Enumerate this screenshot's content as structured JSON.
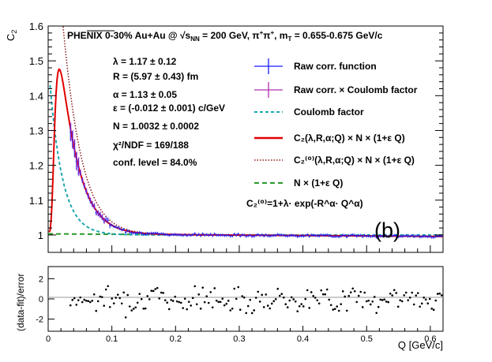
{
  "chart_data": {
    "type": "scatter",
    "title": {
      "prefix": "PHENIX 0-30% Au+Au @ ",
      "sqrt_s": "√s",
      "sqrt_s_sub": "NN",
      "energy": " = 200 GeV, π",
      "sup1": "+",
      "pion_sep": "π",
      "sup2": "+",
      "mt": ",  m",
      "mt_sub": "T",
      "mt_range": " = 0.655-0.675 GeV/c"
    },
    "ylabel": "C",
    "ylabel_sub": "2",
    "xlabel": "Q [GeV/c]",
    "ylabel_residual": "(data-fit)/error",
    "ylim": [
      0.95,
      1.6
    ],
    "xlim": [
      0,
      0.62
    ],
    "residual_ylim": [
      -3.2,
      3.2
    ],
    "y_ticks": [
      "1",
      "1.1",
      "1.2",
      "1.3",
      "1.4",
      "1.5",
      "1.6"
    ],
    "y_tick_values": [
      1,
      1.1,
      1.2,
      1.3,
      1.4,
      1.5,
      1.6
    ],
    "residual_ticks": [
      "2",
      "0",
      "-2"
    ],
    "residual_tick_values": [
      2,
      0,
      -2
    ],
    "x_ticks": [
      "0",
      "0.1",
      "0.2",
      "0.3",
      "0.4",
      "0.5",
      "0.6"
    ],
    "x_tick_values": [
      0,
      0.1,
      0.2,
      0.3,
      0.4,
      0.5,
      0.6
    ],
    "panel_label": "(b)",
    "fit_params": [
      "λ = 1.17 ± 0.12",
      "R = (5.97 ± 0.43) fm",
      "α = 1.13 ± 0.05",
      "ε = (-0.012 ± 0.001) c/GeV",
      "N = 1.0032 ± 0.0002",
      "χ²/NDF = 169/188",
      "conf. level = 84.0%"
    ],
    "legend": [
      {
        "id": "raw",
        "label": "Raw corr. function",
        "color": "#1a1aff",
        "style": "errorbar"
      },
      {
        "id": "rawcoul",
        "label": "Raw corr. × Coulomb factor",
        "color": "#b030b0",
        "style": "errorbar"
      },
      {
        "id": "coulomb",
        "label": "Coulomb factor",
        "color": "#20a8b0",
        "style": "dashed"
      },
      {
        "id": "fit",
        "label": "C₂(λ,R,α;Q) × N × (1+ε Q)",
        "color": "#e00000",
        "style": "solid"
      },
      {
        "id": "c0",
        "label": "C₂⁽⁰⁾(λ,R,α;Q) × N × (1+ε Q)",
        "color": "#8b1a1a",
        "style": "dotted"
      },
      {
        "id": "bg",
        "label": "N × (1+ε Q)",
        "color": "#2a9a2a",
        "style": "dashed"
      }
    ],
    "formula": "C₂⁽⁰⁾=1+λ· exp(-R^α· Q^α)",
    "series": [
      {
        "name": "Raw corr. function",
        "fit_params": {
          "lambda": 1.17,
          "R_fm": 5.97,
          "alpha": 1.13,
          "epsilon": -0.012,
          "N": 1.0032
        },
        "q_range": [
          0.035,
          0.62
        ]
      }
    ],
    "colors": {
      "axis": "#000000",
      "grid_zero": "#999999"
    }
  }
}
